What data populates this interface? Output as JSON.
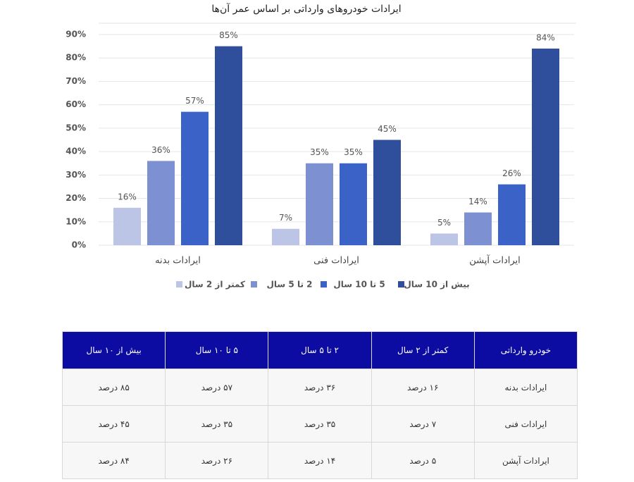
{
  "chart_data": {
    "type": "bar",
    "title": "ایرادات خودروهای وارداتی بر اساس عمر آن‌ها",
    "categories": [
      "ایرادات بدنه",
      "ایرادات فنی",
      "ایرادات آپشن"
    ],
    "series": [
      {
        "name": "کمتر از 2 سال",
        "color": "#bcc5e6",
        "values": [
          16,
          7,
          5
        ],
        "value_labels": [
          "16%",
          "7%",
          "5%"
        ]
      },
      {
        "name": "2 تا 5 سال",
        "color": "#7d90d1",
        "values": [
          36,
          35,
          14
        ],
        "value_labels": [
          "36%",
          "35%",
          "14%"
        ]
      },
      {
        "name": "5 تا 10 سال",
        "color": "#3b63c7",
        "values": [
          57,
          35,
          26
        ],
        "value_labels": [
          "57%",
          "35%",
          "26%"
        ]
      },
      {
        "name": "بیش از 10 سال",
        "color": "#2f4e9b",
        "values": [
          85,
          45,
          84
        ],
        "value_labels": [
          "85%",
          "45%",
          "84%"
        ]
      }
    ],
    "ylim": [
      0,
      90
    ],
    "yticks": [
      {
        "value": 0,
        "label": "0%"
      },
      {
        "value": 10,
        "label": "10%"
      },
      {
        "value": 20,
        "label": "20%"
      },
      {
        "value": 30,
        "label": "30%"
      },
      {
        "value": 40,
        "label": "40%"
      },
      {
        "value": 50,
        "label": "50%"
      },
      {
        "value": 60,
        "label": "60%"
      },
      {
        "value": 70,
        "label": "70%"
      },
      {
        "value": 80,
        "label": "80%"
      },
      {
        "value": 90,
        "label": "90%"
      }
    ],
    "grid": true,
    "legend": "bottom"
  },
  "table": {
    "header": [
      "خودرو وارداتی",
      "کمتر از ۲ سال",
      "۲ تا ۵ سال",
      "۵ تا ۱۰ سال",
      "بیش از ۱۰ سال"
    ],
    "rows": [
      [
        "ایرادات بدنه",
        "۱۶ درصد",
        "۳۶ درصد",
        "۵۷ درصد",
        "۸۵ درصد"
      ],
      [
        "ایرادات فنی",
        "۷ درصد",
        "۳۵ درصد",
        "۳۵ درصد",
        "۴۵ درصد"
      ],
      [
        "ایرادات آپشن",
        "۵ درصد",
        "۱۴ درصد",
        "۲۶ درصد",
        "۸۴ درصد"
      ]
    ]
  }
}
